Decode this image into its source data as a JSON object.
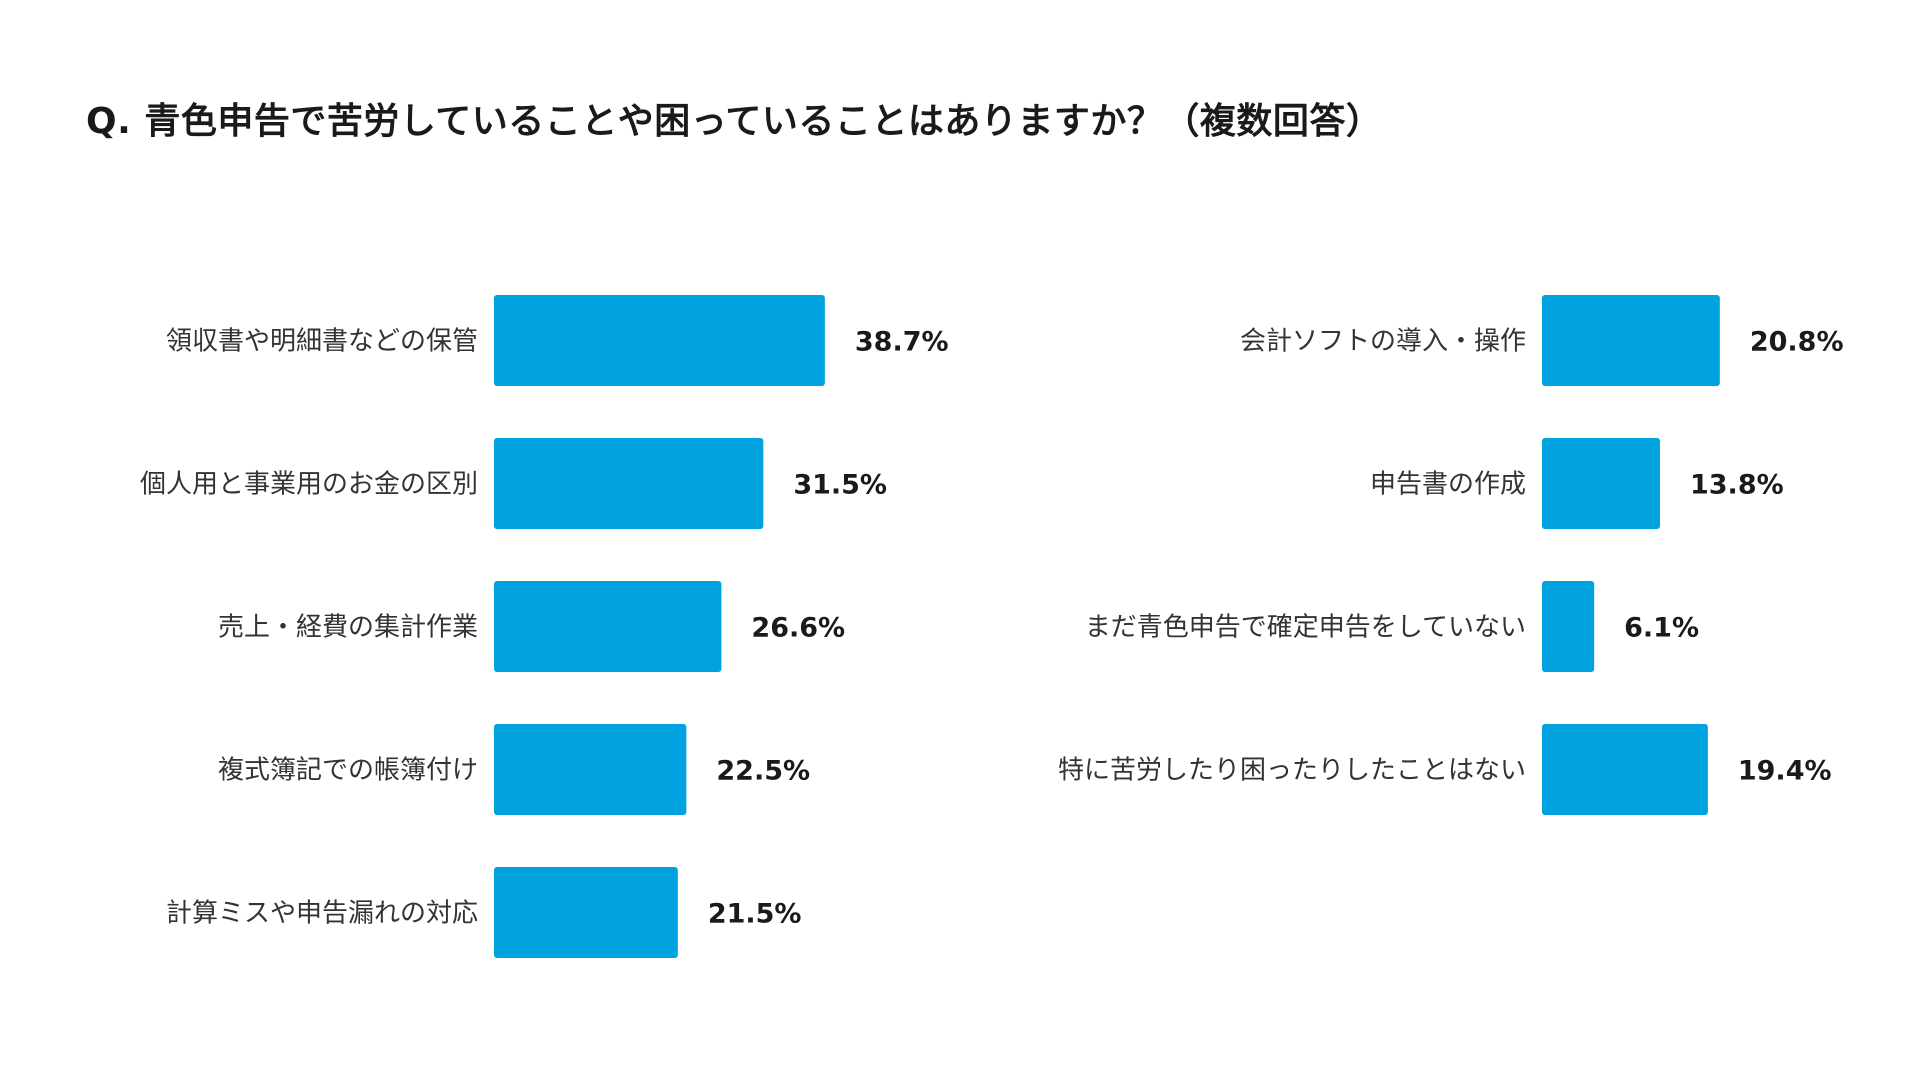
{
  "title": "Q. 青色申告で苦労していることや困っていることはありますか？（複数回答）",
  "colors": {
    "bar": "#00a3e0"
  },
  "chart_data": {
    "type": "bar",
    "orientation": "horizontal",
    "unit": "%",
    "title": "Q. 青色申告で苦労していることや困っていることはありますか？（複数回答）",
    "xlim": [
      0,
      50
    ],
    "grid": false,
    "panels": [
      {
        "categories": [
          "領収書や明細書などの保管",
          "個人用と事業用のお金の区別",
          "売上・経費の集計作業",
          "複式簿記での帳簿付け",
          "計算ミスや申告漏れの対応"
        ],
        "values": [
          38.7,
          31.5,
          26.6,
          22.5,
          21.5
        ],
        "value_labels": [
          "38.7%",
          "31.5%",
          "26.6%",
          "22.5%",
          "21.5%"
        ]
      },
      {
        "categories": [
          "会計ソフトの導入・操作",
          "申告書の作成",
          "まだ青色申告で確定申告をしていない",
          "特に苦労したり困ったりしたことはない"
        ],
        "values": [
          20.8,
          13.8,
          6.1,
          19.4
        ],
        "value_labels": [
          "20.8%",
          "13.8%",
          "6.1%",
          "19.4%"
        ]
      }
    ]
  }
}
